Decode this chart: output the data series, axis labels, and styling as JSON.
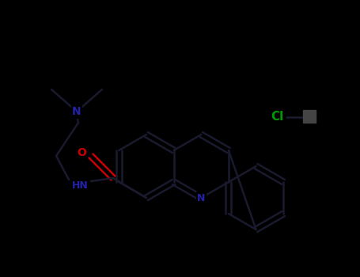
{
  "background_color": "#000000",
  "figsize": [
    4.55,
    3.5
  ],
  "dpi": 100,
  "bond_color": "#1a1a2e",
  "N_color": "#2222aa",
  "O_color": "#cc0000",
  "Cl_color": "#009900",
  "line_width": 1.8,
  "font_size": 9,
  "xlim": [
    0,
    455
  ],
  "ylim": [
    0,
    350
  ]
}
